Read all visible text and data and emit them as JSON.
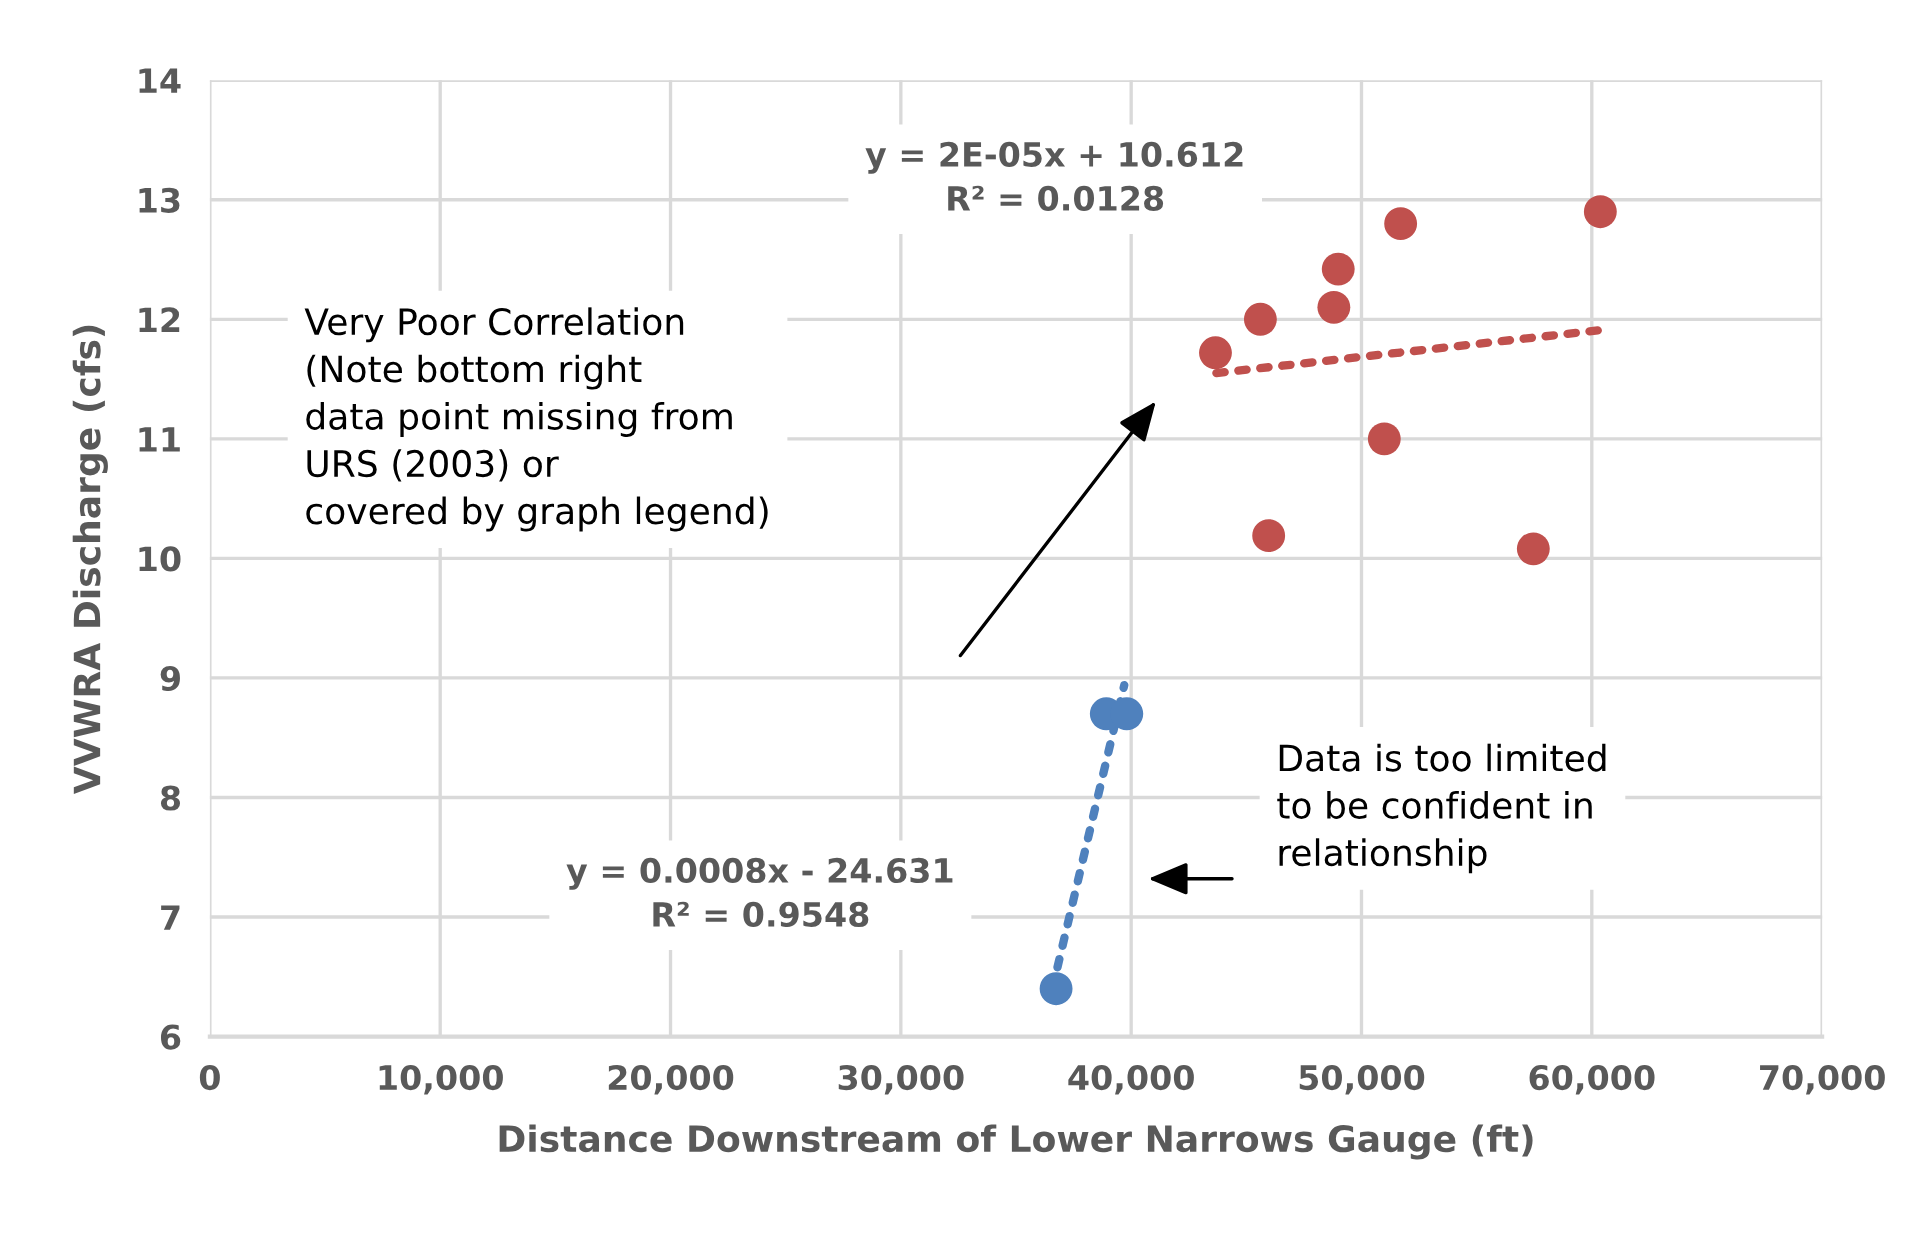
{
  "chart_data": {
    "type": "scatter",
    "xlabel": "Distance Downstream of Lower Narrows Gauge (ft)",
    "ylabel": "VVWRA Discharge (cfs)",
    "xlim": [
      0,
      70000
    ],
    "ylim": [
      6,
      14
    ],
    "xticks": [
      {
        "value": 0,
        "label": "0"
      },
      {
        "value": 10000,
        "label": "10,000"
      },
      {
        "value": 20000,
        "label": "20,000"
      },
      {
        "value": 30000,
        "label": "30,000"
      },
      {
        "value": 40000,
        "label": "40,000"
      },
      {
        "value": 50000,
        "label": "50,000"
      },
      {
        "value": 60000,
        "label": "60,000"
      },
      {
        "value": 70000,
        "label": "70,000"
      }
    ],
    "yticks": [
      6,
      7,
      8,
      9,
      10,
      11,
      12,
      13,
      14
    ],
    "grid": true,
    "marker": "circle",
    "series": [
      {
        "color": "#c0504d",
        "x": [
          43660,
          45610,
          48800,
          48990,
          51700,
          60370,
          50990,
          45970,
          57460
        ],
        "values": [
          11.72,
          12.0,
          12.1,
          12.42,
          12.8,
          12.9,
          11.0,
          10.19,
          10.08
        ]
      },
      {
        "color": "#4f81bd",
        "x": [
          36740,
          38920,
          39810
        ],
        "values": [
          6.4,
          8.7,
          8.7
        ]
      },
      {
        "type": "line",
        "color": "#c0504d",
        "line_style": "dotted",
        "marker": "none",
        "x": [
          43700,
          60400
        ],
        "values": [
          11.55,
          11.91
        ]
      },
      {
        "type": "line",
        "color": "#4f81bd",
        "line_style": "dotted",
        "marker": "none",
        "x": [
          36800,
          39700
        ],
        "values": [
          6.58,
          8.94
        ]
      }
    ],
    "annotations": [
      "y = 2E-05x + 10.612\nR² = 0.0128",
      "Very Poor Correlation\n(Note bottom right\ndata point missing from\nURS (2003) or\ncovered by graph legend)",
      "y = 0.0008x - 24.631\nR² = 0.9548",
      "Data is too limited\nto be confident in\nrelationship"
    ]
  }
}
